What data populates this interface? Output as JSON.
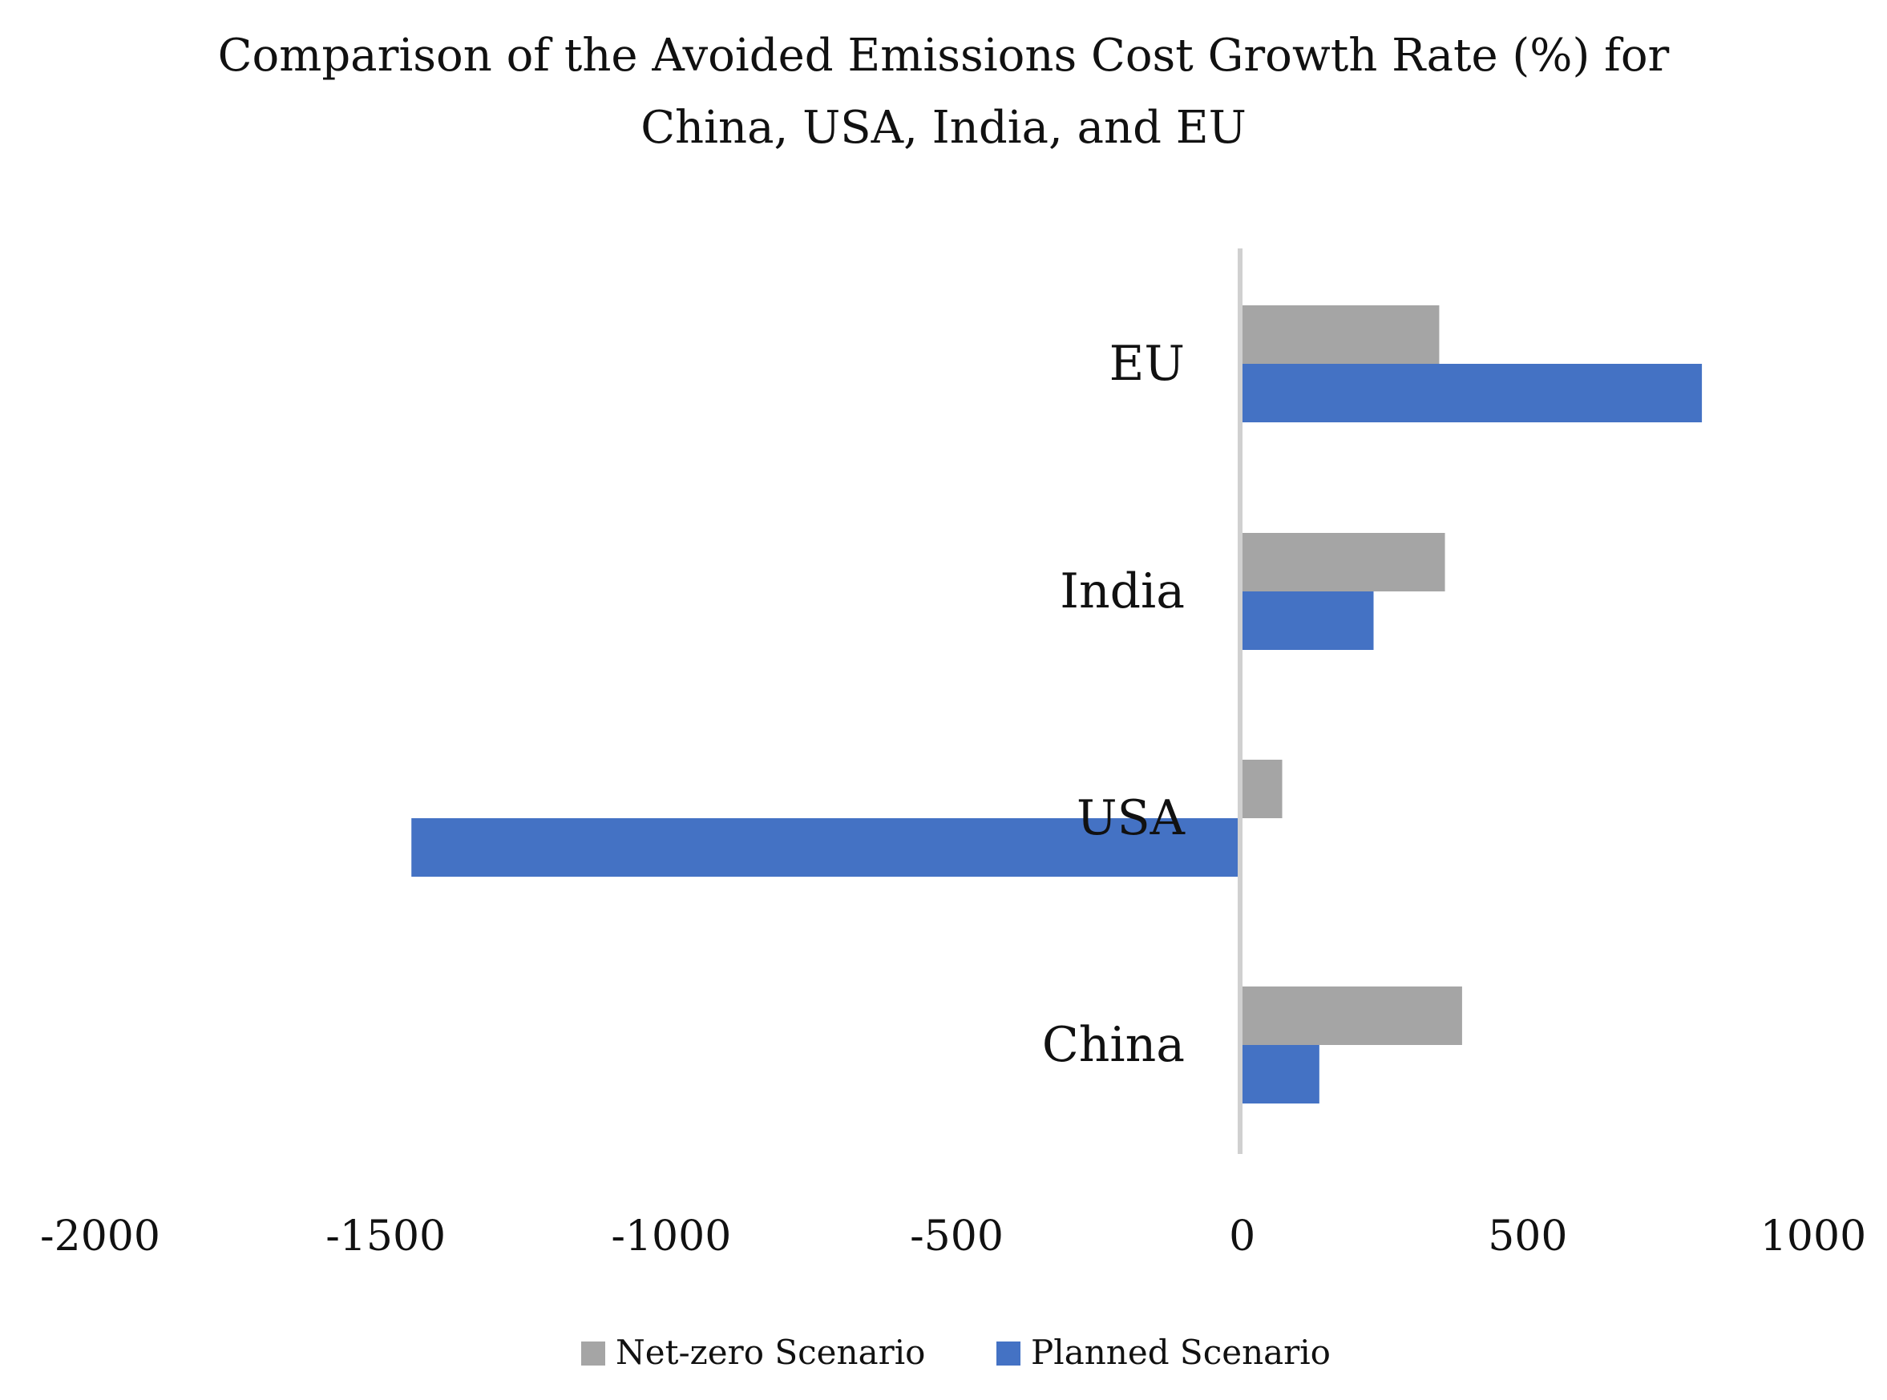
{
  "chart_data": {
    "type": "bar",
    "orientation": "horizontal",
    "title_lines": [
      "Comparison of the Avoided Emissions Cost Growth Rate (%) for",
      "China, USA, India, and EU"
    ],
    "categories": [
      "China",
      "USA",
      "India",
      "EU"
    ],
    "series": [
      {
        "name": "Net-zero Scenario",
        "color": "#a5a5a5",
        "values": [
          385,
          70,
          355,
          345
        ]
      },
      {
        "name": "Planned Scenario",
        "color": "#4472c4",
        "values": [
          135,
          -1455,
          230,
          805
        ]
      }
    ],
    "xlim": [
      -2000,
      1000
    ],
    "xticks": [
      -2000,
      -1500,
      -1000,
      -500,
      0,
      500,
      1000
    ],
    "xtick_labels": [
      "-2000",
      "-1500",
      "-1000",
      "-500",
      "0",
      "500",
      "1000"
    ],
    "legend_position": "bottom",
    "grid": false
  }
}
